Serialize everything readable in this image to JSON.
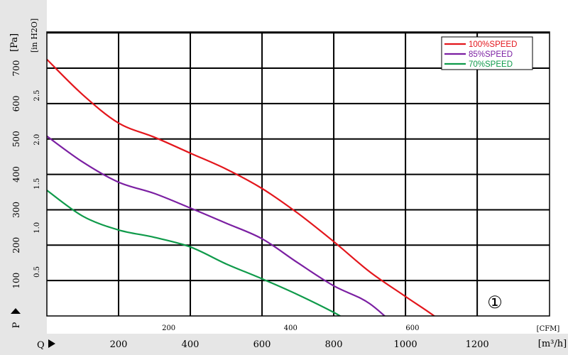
{
  "chart_data": {
    "type": "line",
    "title": "",
    "xlabel": "Q",
    "x_unit": "[m³/h]",
    "x_secondary_unit": "[CFM]",
    "ylabel": "P",
    "y_unit": "[Pa]",
    "y_secondary_unit": "[in H2O]",
    "xlim": [
      0,
      1300
    ],
    "ylim": [
      0,
      800
    ],
    "x_ticks": [
      200,
      400,
      600,
      800,
      1000,
      1200
    ],
    "x_tick_labels": [
      "200",
      "400",
      "600",
      "800",
      "1000",
      "1200"
    ],
    "y_ticks": [
      100,
      200,
      300,
      400,
      500,
      600,
      700
    ],
    "y_tick_labels": [
      "100",
      "200",
      "300",
      "400",
      "500",
      "600",
      "700"
    ],
    "cfm_ticks": [
      200,
      400,
      600
    ],
    "cfm_tick_labels": [
      "200",
      "400",
      "600"
    ],
    "inh2o_ticks": [
      0.5,
      1.0,
      1.5,
      2.0,
      2.5
    ],
    "inh2o_tick_labels": [
      "0.5",
      "1.0",
      "1.5",
      "2.0",
      "2.5"
    ],
    "grid": true,
    "legend_position": "top-right",
    "annotation": "①",
    "series": [
      {
        "name": "100%SPEED",
        "color": "#e3161c",
        "x": [
          0,
          100,
          200,
          300,
          400,
          500,
          600,
          700,
          800,
          900,
          1000,
          1100,
          1200
        ],
        "y": [
          725,
          625,
          545,
          505,
          460,
          415,
          360,
          290,
          210,
          125,
          55,
          -15,
          -105
        ]
      },
      {
        "name": "85%SPEED",
        "color": "#7b1fa2",
        "x": [
          0,
          100,
          200,
          300,
          400,
          500,
          600,
          700,
          800,
          900,
          1000
        ],
        "y": [
          508,
          435,
          378,
          346,
          305,
          262,
          218,
          150,
          85,
          35,
          -55
        ]
      },
      {
        "name": "70%SPEED",
        "color": "#0f9a4a",
        "x": [
          0,
          100,
          200,
          300,
          400,
          500,
          600,
          700,
          800,
          850
        ],
        "y": [
          355,
          282,
          243,
          222,
          195,
          147,
          105,
          60,
          10,
          -20
        ]
      }
    ]
  }
}
